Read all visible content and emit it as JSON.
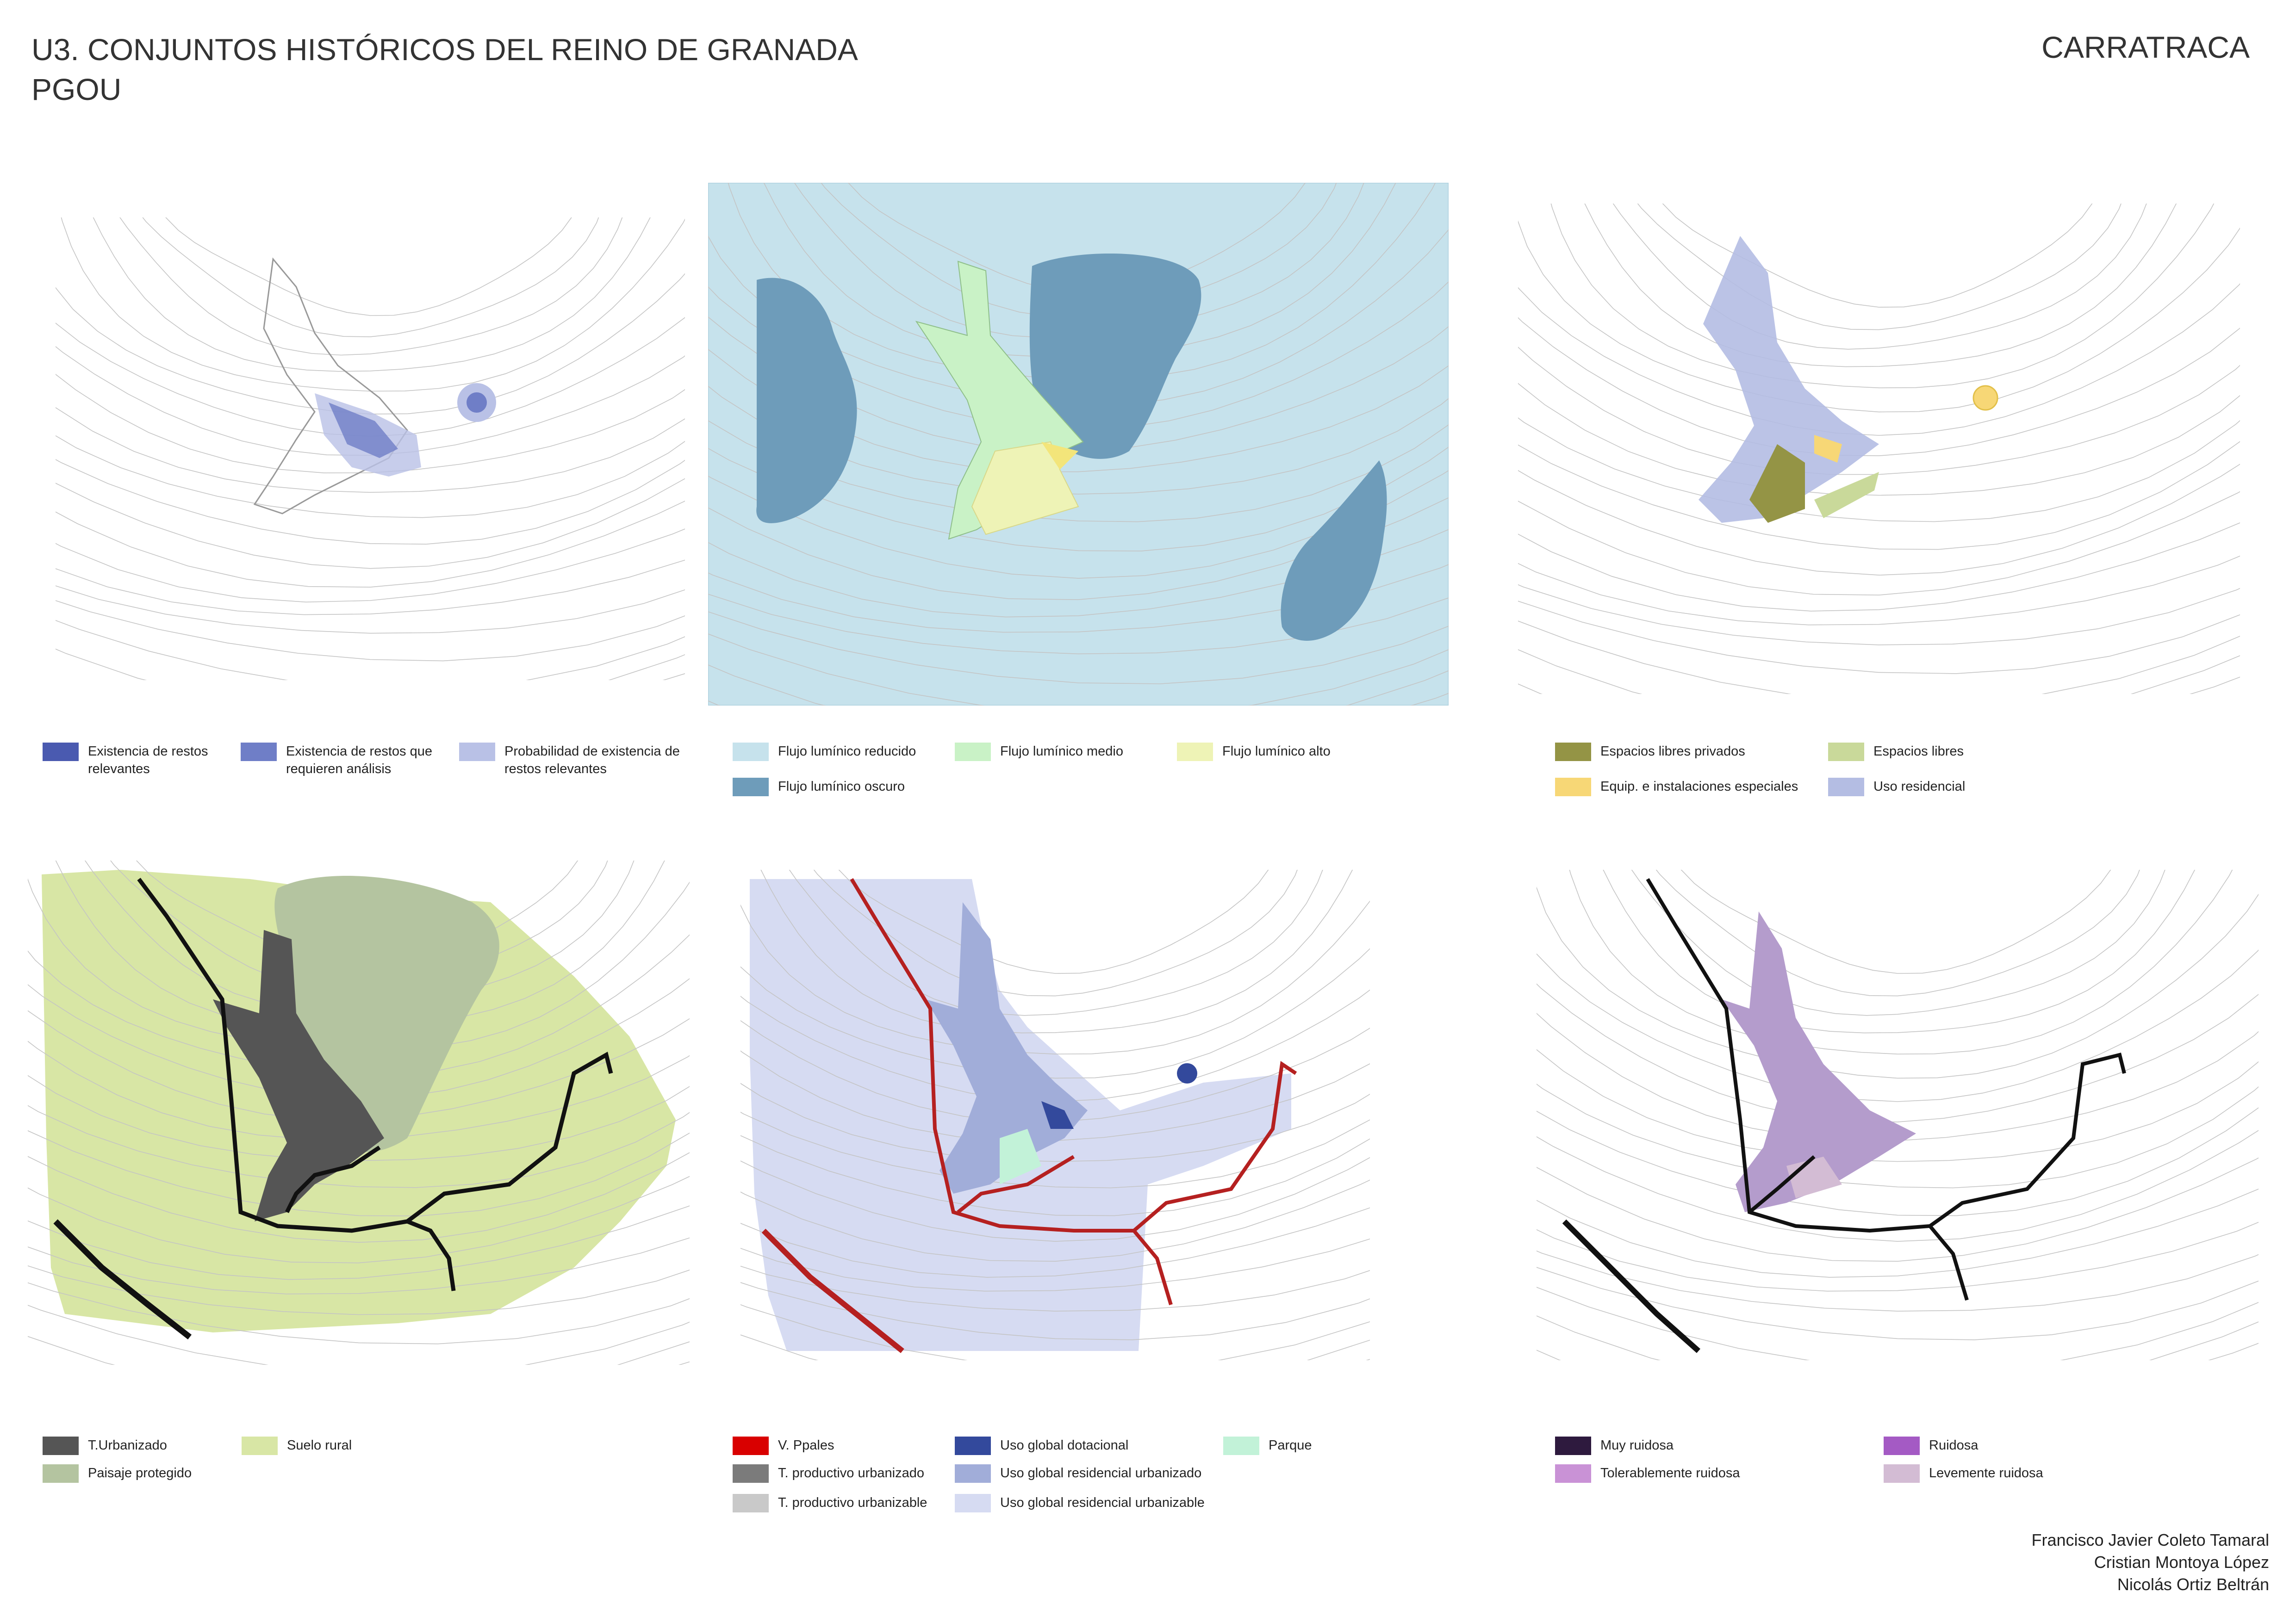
{
  "header": {
    "title_line1": "U3. CONJUNTOS HISTÓRICOS DEL REINO DE GRANADA",
    "title_line2": "PGOU",
    "place": "CARRATRACA"
  },
  "colors": {
    "arch_relevant": "#4a5ab0",
    "arch_analysis": "#6f7ec7",
    "arch_probable": "#b9c1e6",
    "light_reduced": "#c6e2ec",
    "light_medium": "#c9f2c6",
    "light_high": "#eef3b6",
    "light_dark": "#6e9cba",
    "uses_private": "#949445",
    "uses_libres": "#c9d99a",
    "uses_equip": "#f7d776",
    "uses_residential": "#b4bde3",
    "soil_urban": "#555555",
    "soil_rural": "#d8e6a5",
    "soil_protected": "#b4c4a0",
    "roads_main": "#d90000",
    "roads_prod_urban": "#7b7b7b",
    "roads_prod_urbanizable": "#c9c9c9",
    "roads_dotacional": "#33499c",
    "roads_res_urban": "#a1add9",
    "roads_res_urbanizable": "#d6dbf2",
    "roads_parque": "#c2f2d8",
    "noise_very": "#2e1a3e",
    "noise_noisy": "#a45ac4",
    "noise_tolerable": "#c992d6",
    "noise_slight": "#d3bcd4"
  },
  "legends": {
    "archaeology": [
      {
        "label": "Existencia de restos relevantes",
        "color": "#4a5ab0"
      },
      {
        "label": "Existencia de restos que requieren análisis",
        "color": "#6f7ec7"
      },
      {
        "label": "Probabilidad de existencia de restos relevantes",
        "color": "#b9c1e6"
      }
    ],
    "light": [
      {
        "label": "Flujo lumínico reducido",
        "color": "#c6e2ec"
      },
      {
        "label": "Flujo lumínico medio",
        "color": "#c9f2c6"
      },
      {
        "label": "Flujo lumínico alto",
        "color": "#eef3b6"
      },
      {
        "label": "Flujo lumínico oscuro",
        "color": "#6e9cba"
      }
    ],
    "uses": [
      {
        "label": "Espacios libres privados",
        "color": "#949445"
      },
      {
        "label": "Espacios libres",
        "color": "#c9d99a"
      },
      {
        "label": "Equip. e instalaciones especiales",
        "color": "#f7d776"
      },
      {
        "label": "Uso residencial",
        "color": "#b4bde3"
      }
    ],
    "soil": [
      {
        "label": "T.Urbanizado",
        "color": "#555555"
      },
      {
        "label": "Suelo rural",
        "color": "#d8e6a5"
      },
      {
        "label": "Paisaje protegido",
        "color": "#b4c4a0"
      }
    ],
    "roads": [
      {
        "label": "V. Ppales",
        "color": "#d90000"
      },
      {
        "label": "Uso global dotacional",
        "color": "#33499c"
      },
      {
        "label": "Parque",
        "color": "#c2f2d8"
      },
      {
        "label": "T. productivo urbanizado",
        "color": "#7b7b7b"
      },
      {
        "label": "Uso global residencial urbanizado",
        "color": "#a1add9"
      },
      {
        "label": "T. productivo urbanizable",
        "color": "#c9c9c9"
      },
      {
        "label": "Uso global residencial urbanizable",
        "color": "#d6dbf2"
      }
    ],
    "noise": [
      {
        "label": "Muy ruidosa",
        "color": "#2e1a3e"
      },
      {
        "label": "Ruidosa",
        "color": "#a45ac4"
      },
      {
        "label": "Tolerablemente ruidosa",
        "color": "#c992d6"
      },
      {
        "label": "Levemente ruidosa",
        "color": "#d3bcd4"
      }
    ]
  },
  "authors": [
    "Francisco Javier Coleto Tamaral",
    "Cristian Montoya López",
    "Nicolás Ortiz Beltrán"
  ]
}
